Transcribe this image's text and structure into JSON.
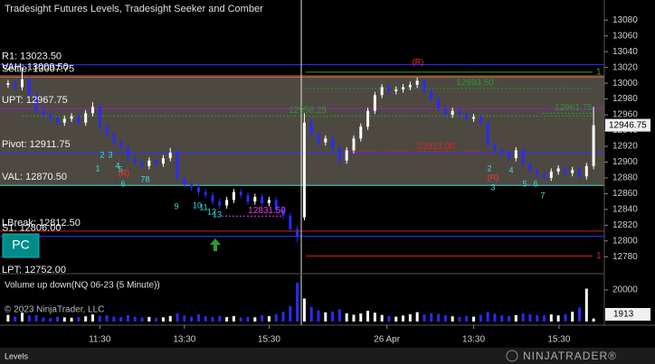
{
  "chart_data": [
    {
      "type": "candlestick",
      "title": "Tradesight Futures Levels, Tradesight Seeker and Comber",
      "up_color": "#ffffff",
      "down_color": "#2a2aff",
      "xlim": [
        0,
        84
      ],
      "xticks": [
        {
          "value": 13.5,
          "label": "11:30"
        },
        {
          "value": 25.5,
          "label": "13:30"
        },
        {
          "value": 37.5,
          "label": "15:30"
        },
        {
          "value": 54.2,
          "label": "26 Apr"
        },
        {
          "value": 66.5,
          "label": "13:30"
        },
        {
          "value": 78.6,
          "label": "15:30"
        }
      ],
      "ylim": [
        12762,
        13105.5
      ],
      "yticks": [
        13080,
        13060,
        13040,
        13020,
        13000,
        12980,
        12960,
        12940,
        12920,
        12900,
        12880,
        12860,
        12840,
        12820,
        12800,
        12780
      ],
      "open": [
        12998,
        13000,
        12995,
        13005,
        12985,
        12965,
        12960,
        12955,
        12950,
        12955,
        12958,
        12950,
        12962,
        12970,
        12945,
        12935,
        12925,
        12918,
        12905,
        12900,
        12895,
        12902,
        12898,
        12905,
        12912,
        12880,
        12872,
        12868,
        12862,
        12858,
        12850,
        12845,
        12852,
        12862,
        12858,
        12850,
        12856,
        12848,
        12852,
        12840,
        12832,
        12815,
        12830,
        12950,
        12935,
        12925,
        12930,
        12918,
        12902,
        12915,
        12930,
        12945,
        12965,
        12985,
        12995,
        12990,
        12992,
        12995,
        12998,
        13003,
        12990,
        12980,
        12968,
        12960,
        12965,
        12960,
        12955,
        12957,
        12950,
        12922,
        12915,
        12912,
        12905,
        12915,
        12898,
        12890,
        12885,
        12880,
        12888,
        12892,
        12886,
        12890,
        12882,
        12895
      ],
      "high": [
        13004,
        13004,
        13020,
        13009,
        12989,
        12969,
        12964,
        12959,
        12959,
        12962,
        12962,
        12966,
        12976,
        12974,
        12949,
        12939,
        12929,
        12922,
        12909,
        12904,
        12906,
        12906,
        12909,
        12918,
        12916,
        12884,
        12876,
        12872,
        12866,
        12862,
        12854,
        12856,
        12866,
        12866,
        12862,
        12860,
        12860,
        12856,
        12856,
        12844,
        12836,
        12819,
        12962,
        12954,
        12939,
        12934,
        12934,
        12922,
        12919,
        12934,
        12949,
        12969,
        12989,
        12999,
        12999,
        12996,
        12999,
        13002,
        13007,
        13007,
        12994,
        12984,
        12972,
        12969,
        12969,
        12964,
        12961,
        12961,
        12954,
        12926,
        12919,
        12916,
        12919,
        12919,
        12902,
        12894,
        12889,
        12892,
        12896,
        12896,
        12894,
        12894,
        12899,
        12970
      ],
      "low": [
        12994,
        12991,
        12991,
        12981,
        12961,
        12956,
        12951,
        12946,
        12946,
        12951,
        12946,
        12946,
        12958,
        12941,
        12931,
        12921,
        12914,
        12901,
        12896,
        12891,
        12891,
        12894,
        12894,
        12901,
        12876,
        12868,
        12864,
        12858,
        12854,
        12846,
        12841,
        12841,
        12848,
        12854,
        12846,
        12846,
        12844,
        12844,
        12836,
        12828,
        12811,
        12798,
        12826,
        12931,
        12921,
        12921,
        12914,
        12896,
        12898,
        12911,
        12926,
        12941,
        12961,
        12981,
        12986,
        12986,
        12988,
        12991,
        12994,
        12986,
        12976,
        12964,
        12956,
        12956,
        12956,
        12951,
        12951,
        12946,
        12918,
        12911,
        12908,
        12901,
        12901,
        12894,
        12886,
        12881,
        12876,
        12876,
        12884,
        12882,
        12882,
        12878,
        12878,
        12891
      ],
      "close": [
        13000,
        12995,
        13005,
        12985,
        12965,
        12960,
        12955,
        12950,
        12955,
        12958,
        12950,
        12962,
        12970,
        12945,
        12935,
        12925,
        12918,
        12905,
        12900,
        12895,
        12902,
        12898,
        12905,
        12912,
        12880,
        12872,
        12868,
        12862,
        12858,
        12850,
        12845,
        12852,
        12862,
        12858,
        12850,
        12856,
        12848,
        12852,
        12840,
        12832,
        12815,
        12806,
        12950,
        12935,
        12925,
        12930,
        12918,
        12902,
        12915,
        12930,
        12945,
        12965,
        12985,
        12995,
        12990,
        12992,
        12995,
        12998,
        13003,
        12990,
        12980,
        12968,
        12960,
        12965,
        12960,
        12955,
        12957,
        12950,
        12922,
        12915,
        12912,
        12905,
        12915,
        12898,
        12890,
        12885,
        12880,
        12888,
        12892,
        12886,
        12890,
        12882,
        12895,
        12946.75
      ],
      "levels": [
        {
          "label": "R1: 13023.50",
          "value": 13023.5,
          "color": "#3030ff"
        },
        {
          "label": "VAH: 13009.50",
          "value": 13009.5,
          "color": "#c04020"
        },
        {
          "label": "Settle: 13007.75",
          "value": 13007.75,
          "color": "#a07050"
        },
        {
          "label": "UPT: 12967.75",
          "value": 12967.75,
          "color": "#a020c0"
        },
        {
          "label": "Pivot: 12911.75",
          "value": 12911.75,
          "color": "#3030ff"
        },
        {
          "label": "VAL: 12870.50",
          "value": 12870.5,
          "color": "#40e0e0"
        },
        {
          "label": "LBreak: 12812.50",
          "value": 12812.5,
          "color": "#c02020"
        },
        {
          "label": "S1: 12806.00",
          "value": 12806,
          "color": "#3030ff"
        },
        {
          "label": "LPT: 12752.00",
          "value": 12752,
          "color": "#808080"
        }
      ],
      "value_area": {
        "color": "#5a564c"
      },
      "targets": [
        {
          "label": "1",
          "value": 13014,
          "color": "#22b022"
        },
        {
          "label": "1",
          "value": 12781,
          "color": "#e02020"
        }
      ],
      "markers": [
        {
          "text": "12913.00",
          "value": 12913,
          "color": "#e02020"
        },
        {
          "text": "12831.50",
          "value": 12831.5,
          "color": "#e040e0"
        },
        {
          "text": "12993.50",
          "value": 12993.5,
          "color": "#2a9a2a"
        },
        {
          "text": "12958.25",
          "value": 12958.25,
          "color": "#2a9a2a"
        },
        {
          "text": "12961.75",
          "value": 12961.75,
          "color": "#2a9a2a"
        }
      ],
      "wave_labels": [
        "1",
        "2",
        "3",
        "4",
        "5",
        "6",
        "7",
        "8",
        "9",
        "10",
        "11",
        "12",
        "13",
        "2",
        "3",
        "4",
        "5",
        "6",
        "7"
      ],
      "reversal_labels": [
        "(R)",
        "(R)",
        "(R)"
      ]
    },
    {
      "type": "bar",
      "title": "Volume up down(NQ 06-23 (5 Minute))",
      "ylim": [
        0,
        28000
      ],
      "yticks": [
        20000
      ],
      "values": [
        4200,
        3100,
        5600,
        3800,
        4100,
        2500,
        2200,
        3000,
        2600,
        2400,
        2800,
        3300,
        4500,
        3600,
        3900,
        3200,
        2800,
        4100,
        3000,
        2600,
        2900,
        2300,
        2700,
        3500,
        5200,
        3800,
        3100,
        4600,
        3300,
        2900,
        3600,
        2800,
        3400,
        2500,
        3000,
        2700,
        3900,
        3400,
        4800,
        6200,
        9800,
        24500,
        14600,
        9200,
        7100,
        5800,
        6400,
        7800,
        5200,
        4300,
        5100,
        6800,
        5600,
        4200,
        3600,
        3100,
        3800,
        4600,
        5900,
        4400,
        5200,
        4800,
        3900,
        3300,
        2900,
        3500,
        3100,
        4200,
        6100,
        4900,
        3800,
        3600,
        4100,
        5300,
        4600,
        4000,
        3800,
        4500,
        3900,
        4700,
        6200,
        8900,
        20800,
        1913
      ]
    }
  ],
  "copyright": "© 2023 NinjaTrader, LLC",
  "button": "PC",
  "tab": "Levels",
  "brand": "NINJATRADER®"
}
